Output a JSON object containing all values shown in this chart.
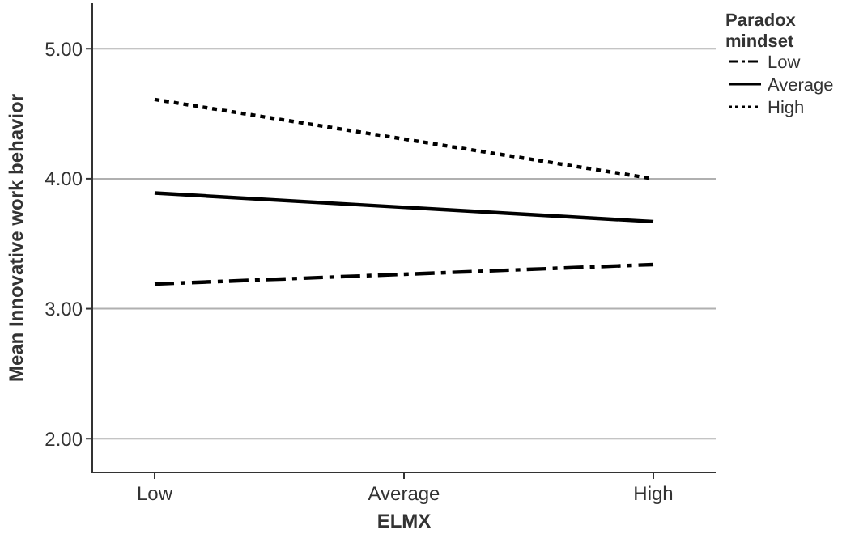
{
  "chart_data": {
    "type": "line",
    "xlabel": "ELMX",
    "ylabel": "Mean Innovative work behavior",
    "legend_title": "Paradox mindset",
    "categories": [
      "Low",
      "Average",
      "High"
    ],
    "series": [
      {
        "name": "Low",
        "color": "#000000",
        "values": [
          3.19,
          3.34
        ],
        "x": [
          "Low",
          "High"
        ],
        "line_style": "dashed"
      },
      {
        "name": "Average",
        "color": "#000000",
        "values": [
          3.89,
          3.67
        ],
        "x": [
          "Low",
          "High"
        ],
        "line_style": "solid"
      },
      {
        "name": "High",
        "color": "#000000",
        "values": [
          4.61,
          4.0
        ],
        "x": [
          "Low",
          "High"
        ],
        "line_style": "dotted"
      }
    ],
    "ylim": [
      1.74,
      5.35
    ],
    "yticks": [
      {
        "value": 2,
        "label": "2.00"
      },
      {
        "value": 3,
        "label": "3.00"
      },
      {
        "value": 4,
        "label": "4.00"
      },
      {
        "value": 5,
        "label": "5.00"
      }
    ],
    "grid": "y",
    "legend": "top right"
  }
}
